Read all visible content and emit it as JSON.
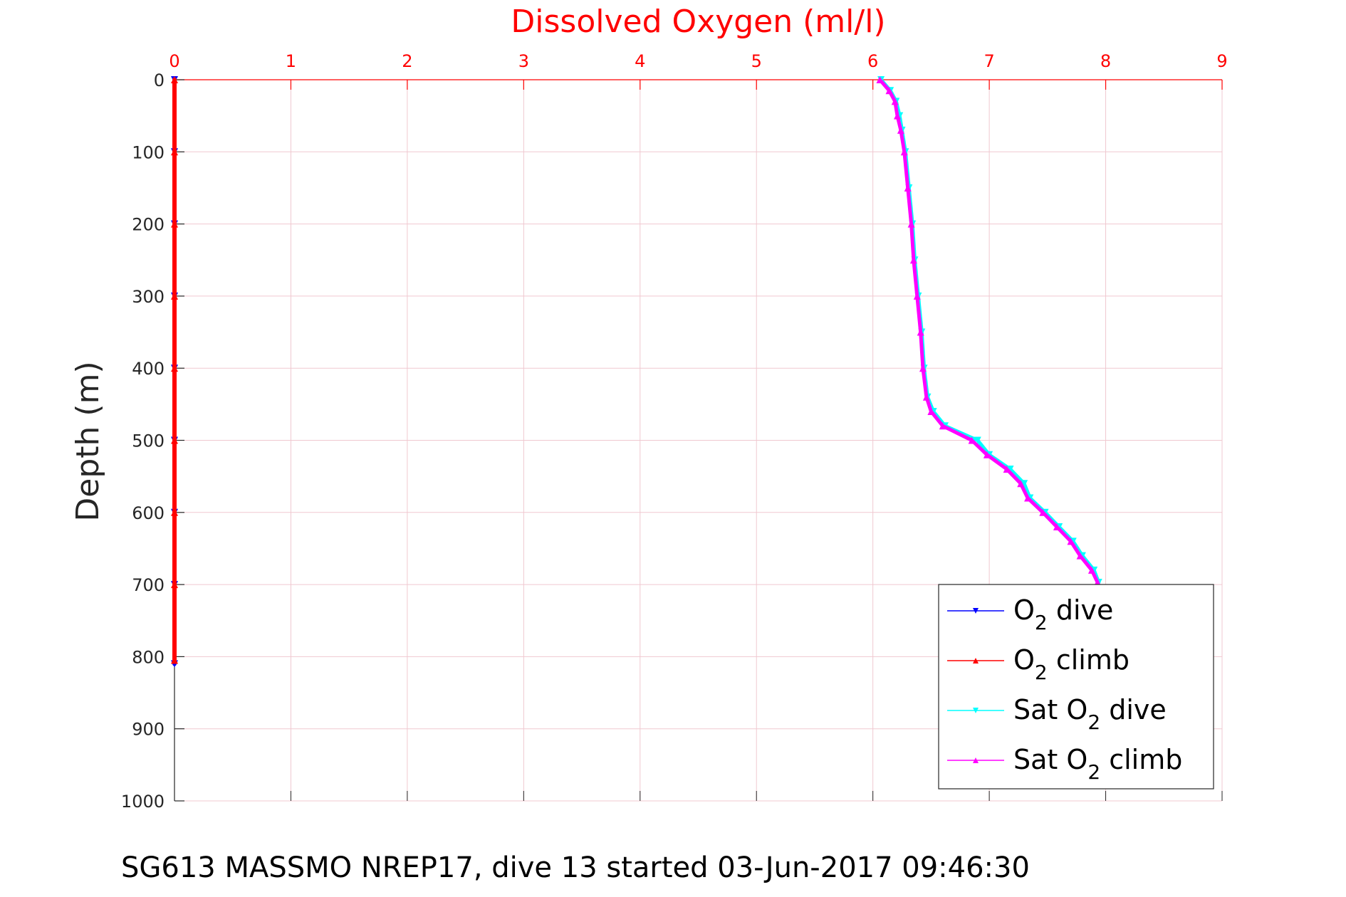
{
  "chart_data": {
    "type": "line",
    "title": "Dissolved Oxygen (ml/l)",
    "xlabel": "Dissolved Oxygen (ml/l)",
    "ylabel": "Depth (m)",
    "xlim": [
      0,
      9
    ],
    "ylim": [
      0,
      1000
    ],
    "y_reversed": true,
    "x_axis_position": "top",
    "grid": true,
    "legend_placement": "bottom-right",
    "xticks": [
      "0",
      "1",
      "2",
      "3",
      "4",
      "5",
      "6",
      "7",
      "8",
      "9"
    ],
    "yticks": [
      "0",
      "100",
      "200",
      "300",
      "400",
      "500",
      "600",
      "700",
      "800",
      "900",
      "1000"
    ],
    "caption": "SG613 MASSMO NREP17, dive 13 started 03-Jun-2017 09:46:30",
    "colors": {
      "title": "#ff0000",
      "x_axis": "#ff0000",
      "y_axis": "#262626",
      "grid": "#f0c8d0",
      "text": "#000000"
    },
    "series": [
      {
        "name": "O2 dive",
        "legend_main": "O",
        "legend_sub": "2",
        "legend_prefix": "",
        "legend_suffix": " dive",
        "color": "#0000ff",
        "marker": "down-triangle",
        "depth": [
          0,
          100,
          200,
          300,
          400,
          500,
          600,
          700,
          810
        ],
        "oxygen": [
          0,
          0,
          0,
          0,
          0,
          0,
          0,
          0,
          0
        ]
      },
      {
        "name": "O2 climb",
        "legend_main": "O",
        "legend_sub": "2",
        "legend_prefix": "",
        "legend_suffix": " climb",
        "color": "#ff0000",
        "marker": "up-triangle",
        "depth": [
          0,
          100,
          200,
          300,
          400,
          500,
          600,
          700,
          805
        ],
        "oxygen": [
          0,
          0,
          0,
          0,
          0,
          0,
          0,
          0,
          0
        ]
      },
      {
        "name": "Sat O2 dive",
        "legend_main": "O",
        "legend_sub": "2",
        "legend_prefix": "Sat ",
        "legend_suffix": " dive",
        "color": "#00ffff",
        "marker": "down-triangle",
        "depth": [
          0,
          15,
          30,
          50,
          70,
          100,
          150,
          200,
          250,
          300,
          350,
          400,
          440,
          460,
          480,
          500,
          520,
          540,
          560,
          580,
          600,
          620,
          640,
          660,
          680,
          697
        ],
        "oxygen": [
          6.07,
          6.15,
          6.2,
          6.23,
          6.25,
          6.28,
          6.31,
          6.34,
          6.36,
          6.39,
          6.42,
          6.44,
          6.47,
          6.52,
          6.62,
          6.9,
          7.0,
          7.18,
          7.3,
          7.35,
          7.48,
          7.6,
          7.72,
          7.8,
          7.9,
          7.94
        ]
      },
      {
        "name": "Sat O2 climb",
        "legend_main": "O",
        "legend_sub": "2",
        "legend_prefix": "Sat ",
        "legend_suffix": " climb",
        "color": "#ff00ff",
        "marker": "up-triangle",
        "depth": [
          0,
          15,
          30,
          50,
          70,
          100,
          150,
          200,
          250,
          300,
          350,
          400,
          440,
          460,
          480,
          500,
          520,
          540,
          560,
          580,
          600,
          620,
          640,
          660,
          680,
          697
        ],
        "oxygen": [
          6.06,
          6.14,
          6.19,
          6.21,
          6.24,
          6.27,
          6.3,
          6.33,
          6.35,
          6.38,
          6.41,
          6.43,
          6.46,
          6.5,
          6.6,
          6.85,
          6.98,
          7.15,
          7.27,
          7.33,
          7.46,
          7.58,
          7.7,
          7.78,
          7.88,
          7.93
        ]
      }
    ]
  }
}
